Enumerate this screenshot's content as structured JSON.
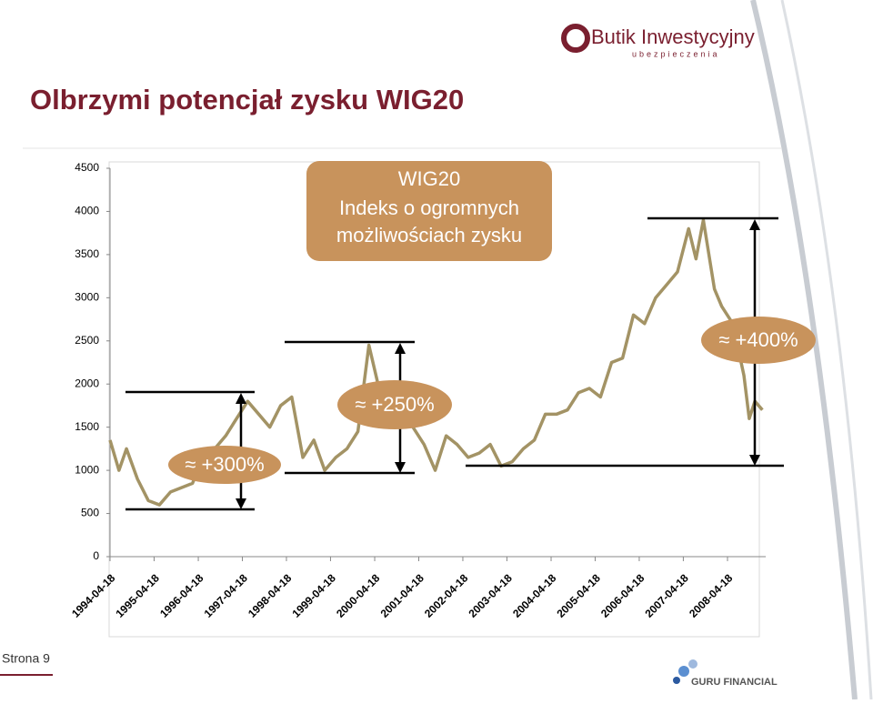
{
  "header": {
    "title": "Olbrzymi potencjał zysku WIG20",
    "logo_top": "Butik Inwestycyjny",
    "logo_sub": "ubezpieczenia",
    "logo_bottom": "GURU FINANCIAL",
    "page": "Strona 9"
  },
  "chart_data": {
    "type": "line",
    "callout": [
      "WIG20",
      "Indeks o ogromnych",
      "możliwościach zysku"
    ],
    "annotations": [
      "≈ +300%",
      "≈ +250%",
      "≈ +400%"
    ],
    "color": "#a39365",
    "xlim": [
      "1994-04-18",
      "2009-03-01"
    ],
    "xticks": [
      "1994-04-18",
      "1995-04-18",
      "1996-04-18",
      "1997-04-18",
      "1998-04-18",
      "1999-04-18",
      "2000-04-18",
      "2001-04-18",
      "2002-04-18",
      "2003-04-18",
      "2004-04-18",
      "2005-04-18",
      "2006-04-18",
      "2007-04-18",
      "2008-04-18"
    ],
    "ylim": [
      0,
      4500
    ],
    "yticks": [
      0,
      500,
      1000,
      1500,
      2000,
      2500,
      3000,
      3500,
      4000,
      4500
    ],
    "grid": false,
    "x": [
      "1994-04-18",
      "1994-07-01",
      "1994-09-01",
      "1994-12-01",
      "1995-03-01",
      "1995-06-01",
      "1995-09-01",
      "1995-12-01",
      "1996-03-01",
      "1996-06-01",
      "1996-09-01",
      "1996-12-01",
      "1997-03-01",
      "1997-06-01",
      "1997-09-01",
      "1997-12-01",
      "1998-03-01",
      "1998-06-01",
      "1998-09-01",
      "1998-12-01",
      "1999-03-01",
      "1999-06-01",
      "1999-09-01",
      "1999-12-01",
      "2000-03-01",
      "2000-06-01",
      "2000-09-01",
      "2000-12-01",
      "2001-03-01",
      "2001-06-01",
      "2001-09-01",
      "2001-12-01",
      "2002-03-01",
      "2002-06-01",
      "2002-09-01",
      "2002-12-01",
      "2003-03-01",
      "2003-06-01",
      "2003-09-01",
      "2003-12-01",
      "2004-03-01",
      "2004-06-01",
      "2004-09-01",
      "2004-12-01",
      "2005-03-01",
      "2005-06-01",
      "2005-09-01",
      "2005-12-01",
      "2006-03-01",
      "2006-06-01",
      "2006-09-01",
      "2006-12-01",
      "2007-03-01",
      "2007-06-01",
      "2007-08-01",
      "2007-10-01",
      "2008-01-01",
      "2008-03-01",
      "2008-06-01",
      "2008-09-01",
      "2008-10-15",
      "2008-12-01",
      "2009-02-01"
    ],
    "values": [
      1350,
      1000,
      1250,
      900,
      650,
      600,
      750,
      800,
      850,
      1150,
      1250,
      1400,
      1600,
      1800,
      1650,
      1500,
      1750,
      1850,
      1150,
      1350,
      1000,
      1150,
      1250,
      1450,
      2450,
      1900,
      1850,
      1750,
      1500,
      1300,
      1000,
      1400,
      1300,
      1150,
      1200,
      1300,
      1050,
      1100,
      1250,
      1350,
      1650,
      1650,
      1700,
      1900,
      1950,
      1850,
      2250,
      2300,
      2800,
      2700,
      3000,
      3150,
      3300,
      3800,
      3450,
      3900,
      3100,
      2900,
      2700,
      2100,
      1600,
      1800,
      1700
    ]
  }
}
